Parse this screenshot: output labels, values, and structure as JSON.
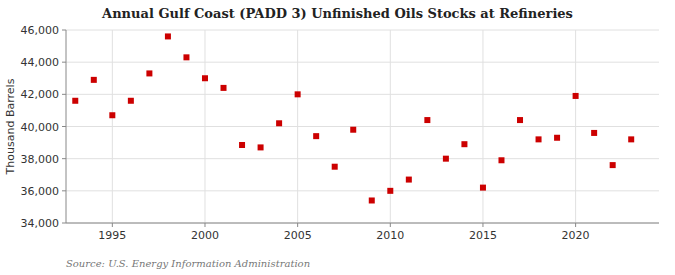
{
  "chart_data": {
    "type": "scatter",
    "title": "Annual Gulf Coast (PADD 3) Unfinished Oils Stocks at Refineries",
    "y_label": "Thousand Barrels",
    "annotations": [
      "Source: U.S. Energy Information Administration"
    ],
    "x": [
      1993,
      1994,
      1995,
      1996,
      1997,
      1998,
      1999,
      2000,
      2001,
      2002,
      2003,
      2004,
      2005,
      2006,
      2007,
      2008,
      2009,
      2010,
      2011,
      2012,
      2013,
      2014,
      2015,
      2016,
      2017,
      2018,
      2019,
      2020,
      2021,
      2022,
      2023
    ],
    "values": [
      41600,
      42900,
      40700,
      41600,
      43300,
      45600,
      44300,
      43000,
      42400,
      38850,
      38700,
      40200,
      42000,
      39400,
      37500,
      39800,
      35400,
      36000,
      36700,
      40400,
      38000,
      38900,
      36200,
      37900,
      40400,
      39200,
      39300,
      41900,
      39600,
      37600,
      39200
    ],
    "color": "#cc0000",
    "marker": "square",
    "xlim": [
      1992.5,
      2024.5
    ],
    "xticks": [
      1995,
      2000,
      2005,
      2010,
      2015,
      2020
    ],
    "ylim": [
      34000,
      46000
    ],
    "yticks": [
      {
        "value": 34000,
        "label": "34,000"
      },
      {
        "value": 36000,
        "label": "36,000"
      },
      {
        "value": 38000,
        "label": "38,000"
      },
      {
        "value": 40000,
        "label": "40,000"
      },
      {
        "value": 42000,
        "label": "42,000"
      },
      {
        "value": 44000,
        "label": "44,000"
      },
      {
        "value": 46000,
        "label": "46,000"
      }
    ],
    "grid": true
  }
}
